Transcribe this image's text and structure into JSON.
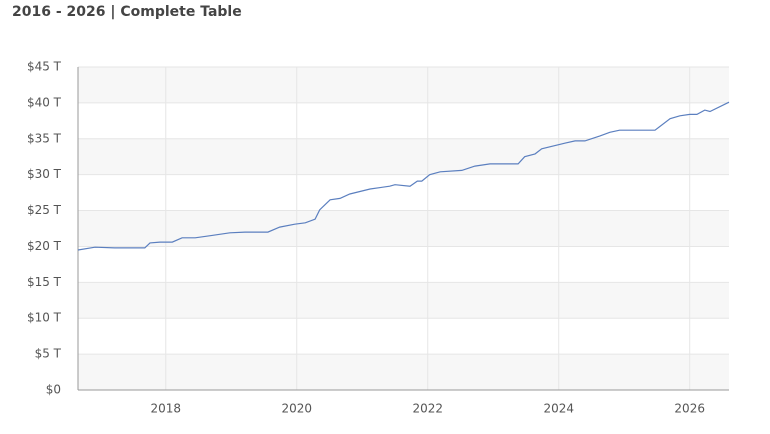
{
  "chart_data": {
    "type": "line",
    "title": "2016 - 2026 | Complete Table",
    "x": [
      2016.66,
      2016.92,
      2017.22,
      2017.68,
      2017.76,
      2017.91,
      2018.1,
      2018.25,
      2018.45,
      2018.68,
      2018.98,
      2019.21,
      2019.56,
      2019.74,
      2019.97,
      2020.13,
      2020.28,
      2020.35,
      2020.51,
      2020.66,
      2020.81,
      2021.12,
      2021.42,
      2021.5,
      2021.73,
      2021.84,
      2021.91,
      2022.03,
      2022.19,
      2022.52,
      2022.72,
      2022.95,
      2023.38,
      2023.48,
      2023.64,
      2023.74,
      2024.1,
      2024.25,
      2024.4,
      2024.63,
      2024.78,
      2024.93,
      2025.47,
      2025.7,
      2025.85,
      2026.0,
      2026.11,
      2026.23,
      2026.31,
      2026.6
    ],
    "values": [
      19.5,
      19.9,
      19.8,
      19.8,
      20.5,
      20.6,
      20.6,
      21.2,
      21.2,
      21.5,
      21.9,
      22.0,
      22.0,
      22.7,
      23.1,
      23.3,
      23.8,
      25.1,
      26.5,
      26.7,
      27.3,
      28.0,
      28.4,
      28.6,
      28.4,
      29.1,
      29.1,
      30.0,
      30.4,
      30.6,
      31.2,
      31.5,
      31.5,
      32.5,
      32.9,
      33.6,
      34.4,
      34.7,
      34.7,
      35.4,
      35.9,
      36.2,
      36.2,
      37.8,
      38.2,
      38.4,
      38.4,
      39.0,
      38.8,
      40.1
    ],
    "color": "#5b7fbf",
    "xlim": [
      2016.66,
      2026.6
    ],
    "xticks": [
      2018,
      2020,
      2022,
      2024,
      2026
    ],
    "ylim": [
      0,
      45
    ],
    "yticks": [
      {
        "value": 0,
        "label": "$0"
      },
      {
        "value": 5,
        "label": "$5 T"
      },
      {
        "value": 10,
        "label": "$10 T"
      },
      {
        "value": 15,
        "label": "$15 T"
      },
      {
        "value": 20,
        "label": "$20 T"
      },
      {
        "value": 25,
        "label": "$25 T"
      },
      {
        "value": 30,
        "label": "$30 T"
      },
      {
        "value": 35,
        "label": "$35 T"
      },
      {
        "value": 40,
        "label": "$40 T"
      },
      {
        "value": 45,
        "label": "$45 T"
      }
    ],
    "grid": true
  }
}
